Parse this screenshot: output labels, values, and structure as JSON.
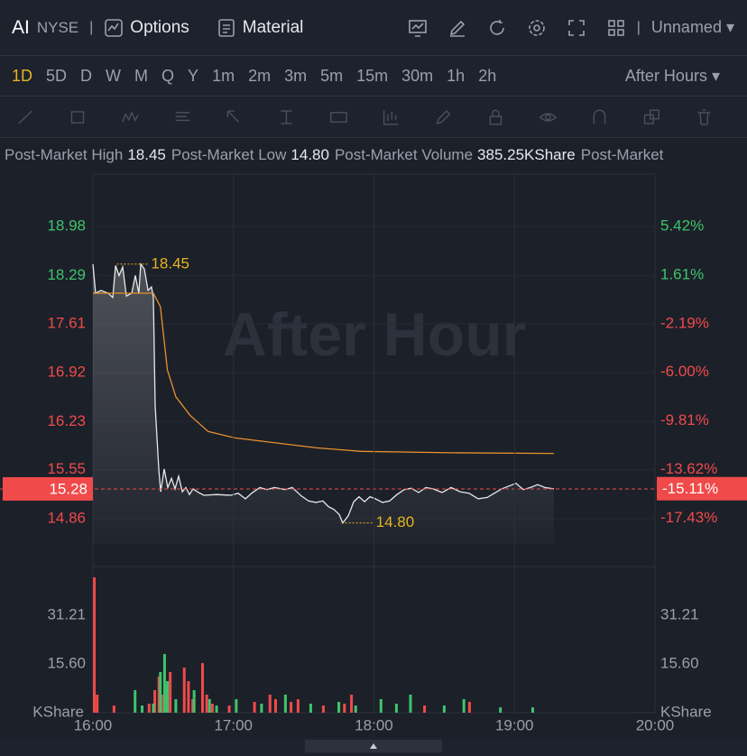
{
  "toolbar": {
    "symbol": "AI",
    "exchange": "NYSE",
    "options": "Options",
    "material": "Material",
    "layout": "Unnamed"
  },
  "intervals": [
    "1D",
    "5D",
    "D",
    "W",
    "M",
    "Q",
    "Y",
    "1m",
    "2m",
    "3m",
    "5m",
    "15m",
    "30m",
    "1h",
    "2h"
  ],
  "active_interval": 0,
  "session": "After Hours",
  "stats": [
    {
      "label": "Post-Market High",
      "value": "18.45"
    },
    {
      "label": "Post-Market Low",
      "value": "14.80"
    },
    {
      "label": "Post-Market Volume",
      "value": "385.25KShare"
    },
    {
      "label": "Post-Market"
    }
  ],
  "chart_data": [
    {
      "type": "line",
      "watermark": "After Hour",
      "x": [
        16.0,
        16.019,
        16.058,
        16.109,
        16.141,
        16.161,
        16.186,
        16.212,
        16.238,
        16.276,
        16.302,
        16.327,
        16.34,
        16.366,
        16.392,
        16.417,
        16.43,
        16.443,
        16.469,
        16.482,
        16.507,
        16.533,
        16.559,
        16.584,
        16.61,
        16.636,
        16.661,
        16.687,
        16.713,
        16.751,
        16.79,
        16.88,
        16.982,
        17.034,
        17.085,
        17.136,
        17.188,
        17.239,
        17.291,
        17.368,
        17.419,
        17.483,
        17.535,
        17.586,
        17.637,
        17.676,
        17.714,
        17.753,
        17.778,
        17.817,
        17.856,
        17.894,
        17.933,
        17.971,
        18.01,
        18.061,
        18.112,
        18.164,
        18.215,
        18.266,
        18.318,
        18.369,
        18.421,
        18.485,
        18.549,
        18.613,
        18.677,
        18.742,
        18.806,
        18.857,
        18.909,
        18.96,
        19.011,
        19.063,
        19.114,
        19.165,
        19.217,
        19.281
      ],
      "series": [
        {
          "color": "#e8e8e8",
          "values": [
            18.45,
            18.04,
            18.08,
            18.04,
            17.98,
            18.43,
            18.29,
            18.41,
            18.0,
            18.04,
            18.29,
            18.04,
            18.45,
            18.38,
            18.08,
            18.13,
            17.98,
            16.45,
            15.56,
            15.24,
            15.56,
            15.3,
            15.43,
            15.28,
            15.46,
            15.24,
            15.3,
            15.2,
            15.28,
            15.23,
            15.19,
            15.2,
            15.19,
            15.22,
            15.14,
            15.23,
            15.3,
            15.27,
            15.3,
            15.27,
            15.3,
            15.18,
            15.11,
            15.09,
            15.11,
            15.03,
            14.99,
            14.92,
            14.8,
            14.9,
            15.1,
            15.17,
            15.1,
            15.17,
            15.14,
            15.09,
            15.11,
            15.2,
            15.27,
            15.29,
            15.23,
            15.3,
            15.28,
            15.23,
            15.3,
            15.24,
            15.22,
            15.14,
            15.16,
            15.22,
            15.28,
            15.32,
            15.36,
            15.27,
            15.3,
            15.34,
            15.3,
            15.28
          ]
        },
        {
          "color": "#e8912d",
          "x": [
            16.0,
            16.43,
            16.48,
            16.53,
            16.59,
            16.69,
            16.82,
            17.01,
            17.26,
            17.59,
            17.91,
            18.55,
            19.28
          ],
          "values": [
            18.04,
            18.04,
            17.85,
            16.96,
            16.58,
            16.32,
            16.09,
            16.0,
            15.94,
            15.86,
            15.81,
            15.79,
            15.78
          ]
        }
      ],
      "xlim": [
        16,
        20
      ],
      "ylim": [
        14.185,
        19.72
      ],
      "yticks": [
        18.98,
        18.29,
        17.61,
        16.92,
        16.23,
        15.55,
        14.86
      ],
      "y2lim": [
        -21.21,
        9.53
      ],
      "y2ticks": [
        {
          "value": 5.42,
          "label": "5.42%"
        },
        {
          "value": 1.61,
          "label": "1.61%"
        },
        {
          "value": -2.19,
          "label": "-2.19%"
        },
        {
          "value": -6.0,
          "label": "-6.00%"
        },
        {
          "value": -9.81,
          "label": "-9.81%"
        },
        {
          "value": -13.62,
          "label": "-13.62%"
        },
        {
          "value": -17.43,
          "label": "-17.43%"
        }
      ],
      "last_price": 15.28,
      "last_change": {
        "value": -15.11,
        "label": "-15.11%"
      },
      "high": {
        "x": 16.17,
        "value": 18.45
      },
      "low": {
        "x": 17.77,
        "value": 14.8,
        "label": "14.80"
      },
      "up_color": "#3ec46d",
      "down_color": "#f04a4a",
      "last_color": "#f04a4a",
      "mark_color": "#e6b422"
    },
    {
      "type": "bar",
      "unit": "KShare",
      "series": [
        {
          "color": "#f04a4a",
          "x": [
            16.01,
            16.03,
            16.15,
            16.4,
            16.44,
            16.47,
            16.49,
            16.52,
            16.55,
            16.65,
            16.68,
            16.71,
            16.78,
            16.81,
            16.85,
            16.97,
            17.15,
            17.26,
            17.3,
            17.41,
            17.46,
            17.64,
            17.79,
            17.84,
            18.36,
            18.68
          ],
          "values": [
            43.35,
            5.78,
            2.31,
            2.89,
            7.22,
            11.56,
            5.78,
            8.67,
            13.0,
            14.45,
            10.11,
            4.33,
            15.89,
            5.78,
            2.89,
            2.31,
            3.47,
            5.78,
            4.33,
            3.47,
            4.33,
            2.31,
            2.89,
            5.78,
            2.31,
            3.47
          ]
        },
        {
          "color": "#3ec46d",
          "x": [
            16.3,
            16.35,
            16.43,
            16.48,
            16.51,
            16.53,
            16.59,
            16.72,
            16.83,
            16.88,
            17.02,
            17.2,
            17.37,
            17.55,
            17.75,
            17.87,
            18.05,
            18.16,
            18.26,
            18.5,
            18.64,
            18.9,
            19.13
          ],
          "values": [
            7.22,
            2.31,
            2.89,
            13.0,
            18.78,
            10.11,
            4.33,
            7.22,
            4.33,
            2.31,
            4.33,
            2.89,
            5.78,
            2.89,
            3.47,
            2.31,
            4.33,
            2.89,
            5.78,
            2.31,
            4.33,
            1.73,
            1.73
          ]
        }
      ],
      "xlim": [
        16,
        20
      ],
      "xticks": [
        {
          "value": 16,
          "label": "16:00"
        },
        {
          "value": 17,
          "label": "17:00"
        },
        {
          "value": 18,
          "label": "18:00"
        },
        {
          "value": 19,
          "label": "19:00"
        },
        {
          "value": 20,
          "label": "20:00"
        }
      ],
      "ylim": [
        0,
        46.81
      ],
      "yticks": [
        {
          "value": 15.6,
          "label": "15.60"
        },
        31.21
      ]
    }
  ]
}
